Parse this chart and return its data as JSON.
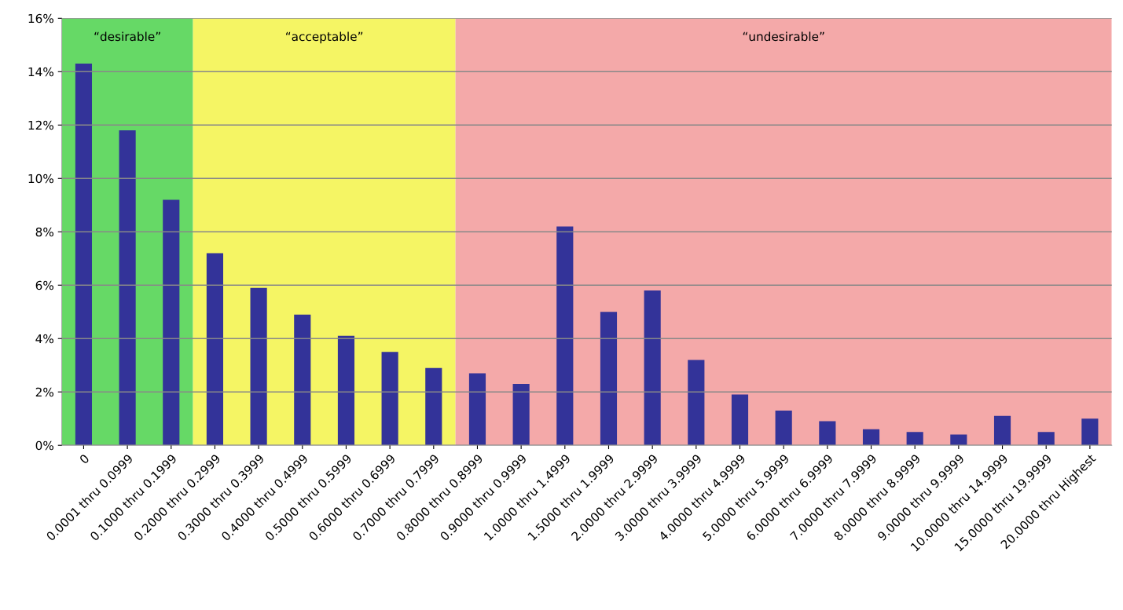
{
  "chart_data": {
    "type": "bar",
    "categories": [
      "0",
      "0.0001 thru 0.0999",
      "0.1000 thru 0.1999",
      "0.2000 thru 0.2999",
      "0.3000 thru 0.3999",
      "0.4000 thru 0.4999",
      "0.5000 thru 0.5999",
      "0.6000 thru 0.6999",
      "0.7000 thru 0.7999",
      "0.8000 thru 0.8999",
      "0.9000 thru 0.9999",
      "1.0000 thru 1.4999",
      "1.5000 thru 1.9999",
      "2.0000 thru 2.9999",
      "3.0000 thru 3.9999",
      "4.0000 thru 4.9999",
      "5.0000 thru 5.9999",
      "6.0000 thru 6.9999",
      "7.0000 thru 7.9999",
      "8.0000 thru 8.9999",
      "9.0000 thru 9.9999",
      "10.0000 thru 14.9999",
      "15.0000 thru 19.9999",
      "20.0000 thru Highest"
    ],
    "values": [
      14.3,
      11.8,
      9.2,
      7.2,
      5.9,
      4.9,
      4.1,
      3.5,
      2.9,
      2.7,
      2.3,
      8.2,
      5.0,
      5.8,
      3.2,
      1.9,
      1.3,
      0.9,
      0.6,
      0.5,
      0.4,
      1.1,
      0.5,
      1.0
    ],
    "color": "#333399",
    "ylim": [
      0,
      16
    ],
    "yticks": [
      {
        "value": 0,
        "label": "0%"
      },
      {
        "value": 2,
        "label": "2%"
      },
      {
        "value": 4,
        "label": "4%"
      },
      {
        "value": 6,
        "label": "6%"
      },
      {
        "value": 8,
        "label": "8%"
      },
      {
        "value": 10,
        "label": "10%"
      },
      {
        "value": 12,
        "label": "12%"
      },
      {
        "value": 14,
        "label": "14%"
      },
      {
        "value": 16,
        "label": "16%"
      }
    ],
    "grid": "y",
    "bands": [
      {
        "axis": "x",
        "from": "0",
        "to": "0.1000 thru 0.1999",
        "label": "“desirable”",
        "color": "#66d966"
      },
      {
        "axis": "x",
        "from": "0.2000 thru 0.2999",
        "to": "0.7000 thru 0.7999",
        "label": "“acceptable”",
        "color": "#f5f564"
      },
      {
        "axis": "x",
        "from": "0.8000 thru 0.8999",
        "to": "20.0000 thru Highest",
        "label": "“undesirable”",
        "color": "#f4a9a9"
      }
    ]
  }
}
